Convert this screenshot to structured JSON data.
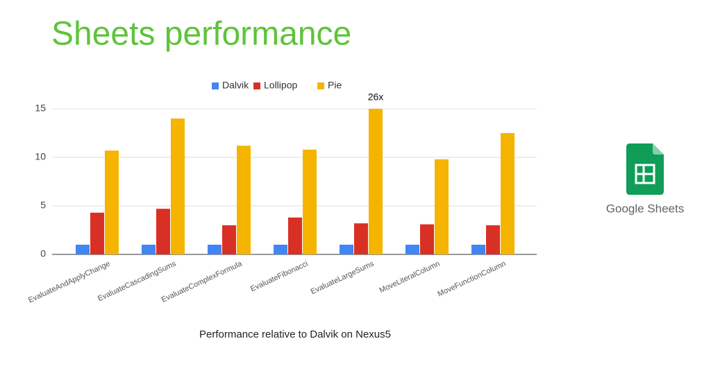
{
  "chart_data": {
    "type": "bar",
    "title": "Sheets performance",
    "x_label": "Performance relative to Dalvik on Nexus5",
    "categories": [
      "EvaluateAndApplyChange",
      "EvaluateCascadingSums",
      "EvaluateComplexFormula",
      "EvaluateFibonacci",
      "EvaluateLargeSums",
      "MoveLiteralColumn",
      "MoveFunctionColumn"
    ],
    "series": [
      {
        "name": "Dalvik",
        "color": "#4285f4",
        "values": [
          1,
          1,
          1,
          1,
          1,
          1,
          1
        ]
      },
      {
        "name": "Lollipop",
        "color": "#d93025",
        "values": [
          4.3,
          4.7,
          3.0,
          3.8,
          3.2,
          3.1,
          3.0
        ]
      },
      {
        "name": "Pie",
        "color": "#f4b400",
        "values": [
          10.7,
          14.0,
          11.2,
          10.8,
          26,
          9.8,
          12.5
        ],
        "value_labels": [
          null,
          null,
          null,
          null,
          "26x",
          null,
          null
        ]
      }
    ],
    "ylim": [
      0,
      15
    ],
    "yticks": [
      0,
      5,
      10,
      15
    ],
    "grid": true,
    "legend": "top"
  },
  "logo": {
    "text": "Google Sheets"
  }
}
